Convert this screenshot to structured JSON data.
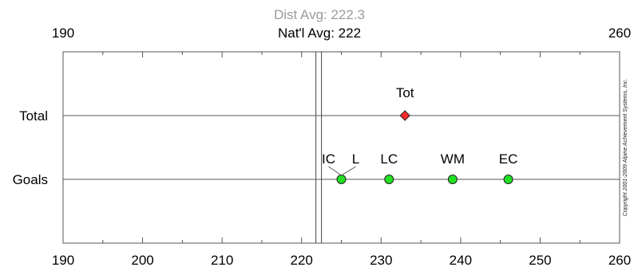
{
  "chart_data": {
    "type": "scatter",
    "xlim": [
      190,
      260
    ],
    "x_ticks": [
      190,
      200,
      210,
      220,
      230,
      240,
      250,
      260
    ],
    "top_axis_labels": [
      190,
      260
    ],
    "categories": [
      "Total",
      "Goals"
    ],
    "reference_lines": [
      {
        "name": "Dist Avg",
        "label": "Dist Avg: 222.3",
        "value": 222.3,
        "color": "#9a9a9a"
      },
      {
        "name": "Nat'l Avg",
        "label": "Nat'l Avg: 222",
        "value": 222,
        "color": "#000000"
      }
    ],
    "series": [
      {
        "category": "Total",
        "marker": "diamond",
        "color": "#ff2a2a",
        "points": [
          {
            "label": "Tot",
            "x": 233
          }
        ]
      },
      {
        "category": "Goals",
        "marker": "circle",
        "color": "#22e022",
        "points": [
          {
            "label": "IC",
            "x": 225
          },
          {
            "label": "L",
            "x": 225
          },
          {
            "label": "LC",
            "x": 231
          },
          {
            "label": "WM",
            "x": 239
          },
          {
            "label": "EC",
            "x": 246
          }
        ]
      }
    ],
    "grid": false,
    "copyright": "Copyright 2001-2009 Alpine Achievement Systems, Inc."
  }
}
